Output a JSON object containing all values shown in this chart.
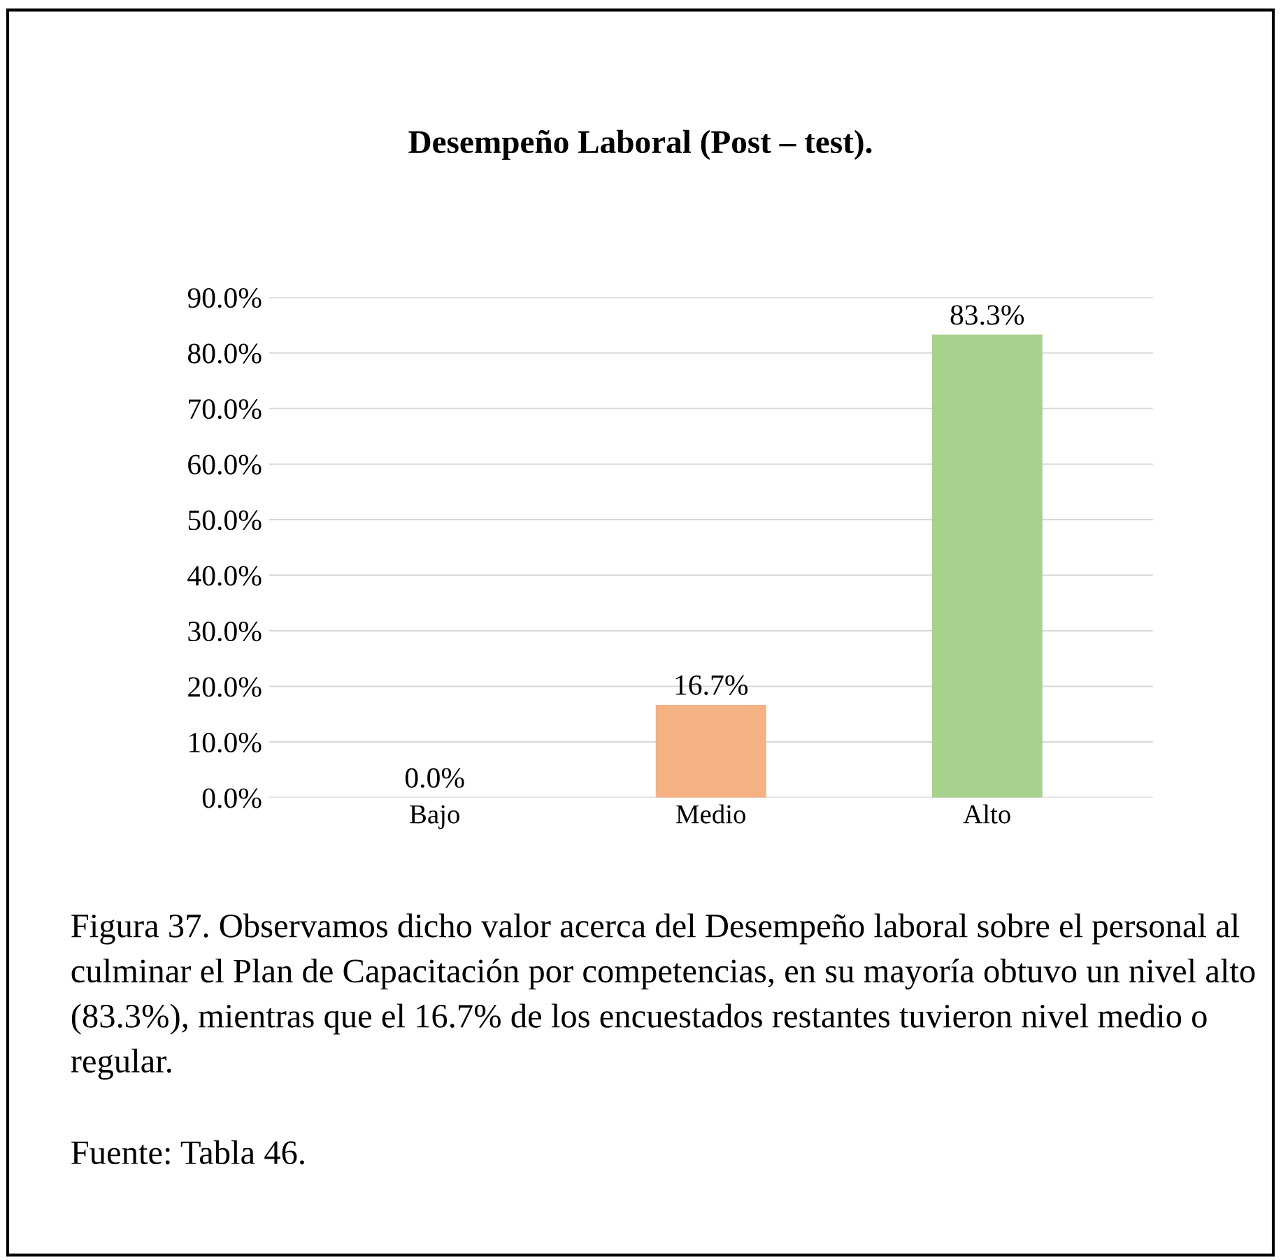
{
  "chart_data": {
    "type": "bar",
    "title": "Desempeño Laboral (Post – test).",
    "categories": [
      "Bajo",
      "Medio",
      "Alto"
    ],
    "values": [
      0.0,
      16.7,
      83.3
    ],
    "colors": [
      "#4a76a8",
      "#f4b183",
      "#a9d18e"
    ],
    "value_labels": [
      "0.0%",
      "16.7%",
      "83.3%"
    ],
    "ylim": [
      0,
      90
    ],
    "yticks": [
      {
        "value": 0,
        "label": "0.0%"
      },
      {
        "value": 10,
        "label": "10.0%"
      },
      {
        "value": 20,
        "label": "20.0%"
      },
      {
        "value": 30,
        "label": "30.0%"
      },
      {
        "value": 40,
        "label": "40.0%"
      },
      {
        "value": 50,
        "label": "50.0%"
      },
      {
        "value": 60,
        "label": "60.0%"
      },
      {
        "value": 70,
        "label": "70.0%"
      },
      {
        "value": 80,
        "label": "80.0%"
      },
      {
        "value": 90,
        "label": "90.0%"
      }
    ],
    "grid": "y",
    "annotations": [
      "Figura 37. Observamos dicho valor acerca del Desempeño laboral sobre el personal al culminar el Plan de Capacitación por competencias, en su mayoría obtuvo un nivel alto (83.3%), mientras que el 16.7% de los encuestados restantes tuvieron nivel medio o regular.",
      "Fuente: Tabla 46."
    ]
  }
}
